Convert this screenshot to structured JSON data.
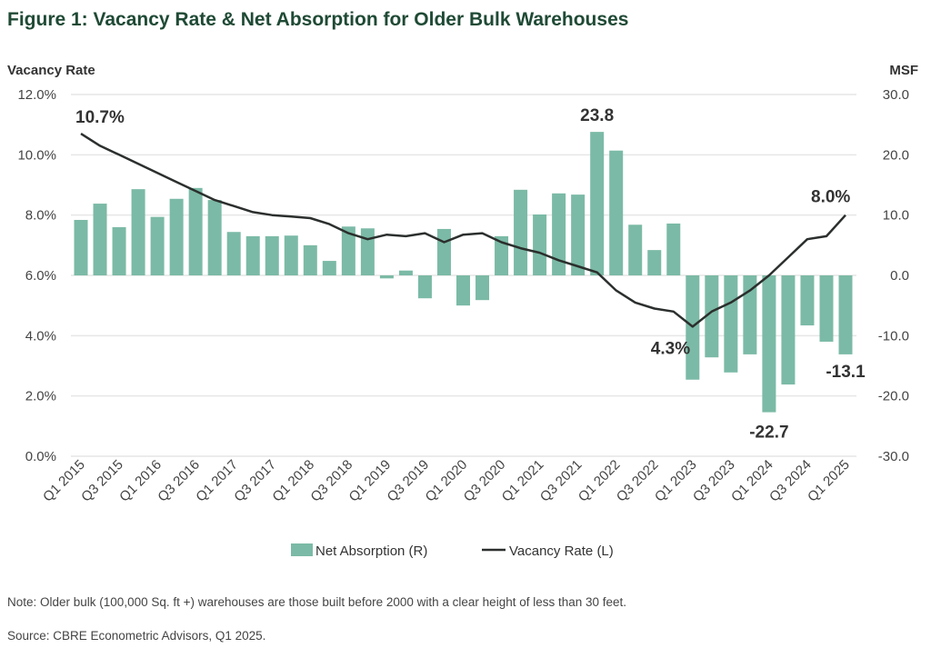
{
  "chart_data": {
    "type": "bar",
    "title": "Figure 1: Vacancy Rate & Net Absorption for Older Bulk Warehouses",
    "ylabel_left": "Vacancy Rate",
    "ylabel_right": "MSF",
    "ylim_left": [
      0,
      12
    ],
    "ylim_right": [
      -30,
      30
    ],
    "yticks_left": [
      "0.0%",
      "2.0%",
      "4.0%",
      "6.0%",
      "8.0%",
      "10.0%",
      "12.0%"
    ],
    "yticks_right": [
      "-30.0",
      "-20.0",
      "-10.0",
      "0.0",
      "10.0",
      "20.0",
      "30.0"
    ],
    "grid": true,
    "legend_placement": "bottom",
    "xtick_labels": [
      "Q1 2015",
      "Q3 2015",
      "Q1 2016",
      "Q3 2016",
      "Q1 2017",
      "Q3 2017",
      "Q1 2018",
      "Q3 2018",
      "Q1 2019",
      "Q3 2019",
      "Q1 2020",
      "Q3 2020",
      "Q1 2021",
      "Q3 2021",
      "Q1 2022",
      "Q3 2022",
      "Q1 2023",
      "Q3 2023",
      "Q1 2024",
      "Q3 2024",
      "Q1 2025"
    ],
    "categories": [
      "Q1 2015",
      "Q2 2015",
      "Q3 2015",
      "Q4 2015",
      "Q1 2016",
      "Q2 2016",
      "Q3 2016",
      "Q4 2016",
      "Q1 2017",
      "Q2 2017",
      "Q3 2017",
      "Q4 2017",
      "Q1 2018",
      "Q2 2018",
      "Q3 2018",
      "Q4 2018",
      "Q1 2019",
      "Q2 2019",
      "Q3 2019",
      "Q4 2019",
      "Q1 2020",
      "Q2 2020",
      "Q3 2020",
      "Q4 2020",
      "Q1 2021",
      "Q2 2021",
      "Q3 2021",
      "Q4 2021",
      "Q1 2022",
      "Q2 2022",
      "Q3 2022",
      "Q4 2022",
      "Q1 2023",
      "Q2 2023",
      "Q3 2023",
      "Q4 2023",
      "Q1 2024",
      "Q2 2024",
      "Q3 2024",
      "Q4 2024",
      "Q1 2025"
    ],
    "series": [
      {
        "name": "Net Absorption (R)",
        "type": "bar",
        "axis": "right",
        "color": "#7bbaa6",
        "values": [
          9.2,
          11.9,
          8.0,
          14.3,
          9.7,
          12.7,
          14.5,
          12.5,
          7.2,
          6.5,
          6.5,
          6.6,
          5.0,
          2.4,
          8.1,
          7.8,
          -0.5,
          0.8,
          -3.8,
          7.7,
          -5.0,
          -4.1,
          6.5,
          14.2,
          10.1,
          13.6,
          13.4,
          23.8,
          20.7,
          8.4,
          4.2,
          8.6,
          -17.3,
          -13.6,
          -16.1,
          -13.1,
          -22.7,
          -18.1,
          -8.3,
          -11.0,
          -13.1
        ]
      },
      {
        "name": "Vacancy Rate (L)",
        "type": "line",
        "axis": "left",
        "color": "#2b2f2d",
        "values": [
          10.7,
          10.3,
          10.0,
          9.7,
          9.4,
          9.1,
          8.8,
          8.5,
          8.3,
          8.1,
          8.0,
          7.95,
          7.9,
          7.7,
          7.4,
          7.2,
          7.35,
          7.3,
          7.4,
          7.1,
          7.35,
          7.4,
          7.1,
          6.9,
          6.75,
          6.5,
          6.3,
          6.1,
          5.5,
          5.1,
          4.9,
          4.8,
          4.3,
          4.8,
          5.1,
          5.5,
          6.0,
          6.6,
          7.2,
          7.3,
          8.0
        ]
      }
    ],
    "annotations": [
      {
        "text": "10.7%",
        "series": "Vacancy Rate (L)",
        "category": "Q1 2015"
      },
      {
        "text": "4.3%",
        "series": "Vacancy Rate (L)",
        "category": "Q1 2023"
      },
      {
        "text": "8.0%",
        "series": "Vacancy Rate (L)",
        "category": "Q1 2025"
      },
      {
        "text": "23.8",
        "series": "Net Absorption (R)",
        "category": "Q4 2021"
      },
      {
        "text": "-22.7",
        "series": "Net Absorption (R)",
        "category": "Q1 2024"
      },
      {
        "text": "-13.1",
        "series": "Net Absorption (R)",
        "category": "Q1 2025"
      }
    ]
  },
  "note": "Note: Older bulk (100,000 Sq. ft +) warehouses are those built before 2000 with a clear height of less than 30 feet.",
  "source": "Source: CBRE Econometric Advisors, Q1 2025."
}
